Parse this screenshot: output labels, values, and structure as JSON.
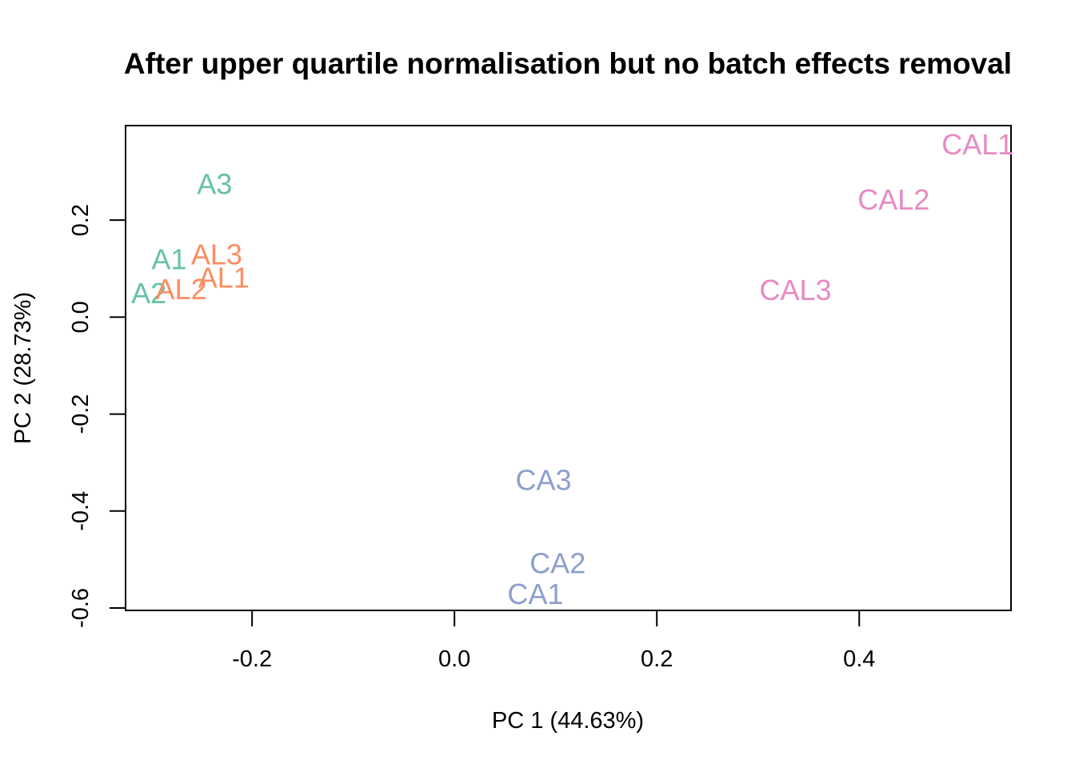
{
  "chart_data": {
    "type": "scatter",
    "title": "After upper quartile normalisation but no batch effects removal",
    "xlabel": "PC 1 (44.63%)",
    "ylabel": "PC 2 (28.73%)",
    "xlim": [
      -0.325,
      0.55
    ],
    "ylim": [
      -0.605,
      0.395
    ],
    "xticks": [
      -0.2,
      0.0,
      0.2,
      0.4
    ],
    "xtick_labels": [
      "-0.2",
      "0.0",
      "0.2",
      "0.4"
    ],
    "yticks": [
      -0.6,
      -0.4,
      -0.2,
      0.0,
      0.2
    ],
    "ytick_labels": [
      "-0.6",
      "-0.4",
      "-0.2",
      "0.0",
      "0.2"
    ],
    "grid": false,
    "legend": "none",
    "marker": "text-label",
    "points": [
      {
        "label": "A1",
        "x": -0.282,
        "y": 0.12,
        "color": "#66C2A5"
      },
      {
        "label": "A2",
        "x": -0.302,
        "y": 0.05,
        "color": "#66C2A5"
      },
      {
        "label": "A3",
        "x": -0.237,
        "y": 0.275,
        "color": "#66C2A5"
      },
      {
        "label": "AL1",
        "x": -0.228,
        "y": 0.082,
        "color": "#FC8D62"
      },
      {
        "label": "AL2",
        "x": -0.27,
        "y": 0.058,
        "color": "#FC8D62"
      },
      {
        "label": "AL3",
        "x": -0.235,
        "y": 0.13,
        "color": "#FC8D62"
      },
      {
        "label": "CA1",
        "x": 0.08,
        "y": -0.57,
        "color": "#8DA0CB"
      },
      {
        "label": "CA2",
        "x": 0.102,
        "y": -0.507,
        "color": "#8DA0CB"
      },
      {
        "label": "CA3",
        "x": 0.088,
        "y": -0.335,
        "color": "#8DA0CB"
      },
      {
        "label": "CAL1",
        "x": 0.517,
        "y": 0.357,
        "color": "#E78AC3"
      },
      {
        "label": "CAL2",
        "x": 0.434,
        "y": 0.243,
        "color": "#E78AC3"
      },
      {
        "label": "CAL3",
        "x": 0.337,
        "y": 0.057,
        "color": "#E78AC3"
      }
    ]
  }
}
